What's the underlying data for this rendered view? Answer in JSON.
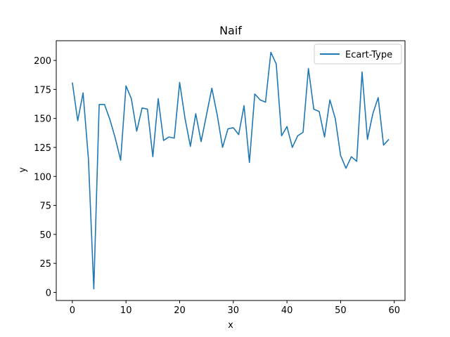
{
  "chart_data": {
    "type": "line",
    "title": "Naif",
    "xlabel": "x",
    "ylabel": "y",
    "xlim": [
      -3,
      62
    ],
    "ylim": [
      -7,
      217
    ],
    "xticks": [
      0,
      10,
      20,
      30,
      40,
      50,
      60
    ],
    "yticks": [
      0,
      25,
      50,
      75,
      100,
      125,
      150,
      175,
      200
    ],
    "grid": false,
    "legend_position": "top-right",
    "series": [
      {
        "name": "Ecart-Type",
        "color": "#1f77b4",
        "x": [
          0,
          1,
          2,
          3,
          4,
          5,
          6,
          7,
          8,
          9,
          10,
          11,
          12,
          13,
          14,
          15,
          16,
          17,
          18,
          19,
          20,
          21,
          22,
          23,
          24,
          25,
          26,
          27,
          28,
          29,
          30,
          31,
          32,
          33,
          34,
          35,
          36,
          37,
          38,
          39,
          40,
          41,
          42,
          43,
          44,
          45,
          46,
          47,
          48,
          49,
          50,
          51,
          52,
          53,
          54,
          55,
          56,
          57,
          58,
          59
        ],
        "values": [
          181,
          148,
          172,
          115,
          3,
          162,
          162,
          149,
          133,
          114,
          178,
          167,
          139,
          159,
          158,
          117,
          167,
          131,
          134,
          133,
          181,
          150,
          126,
          154,
          130,
          153,
          176,
          153,
          125,
          141,
          142,
          136,
          161,
          112,
          171,
          166,
          164,
          207,
          197,
          135,
          143,
          125,
          135,
          138,
          193,
          158,
          156,
          134,
          166,
          150,
          118,
          107,
          117,
          113,
          190,
          132,
          154,
          168,
          127,
          132
        ]
      }
    ]
  }
}
